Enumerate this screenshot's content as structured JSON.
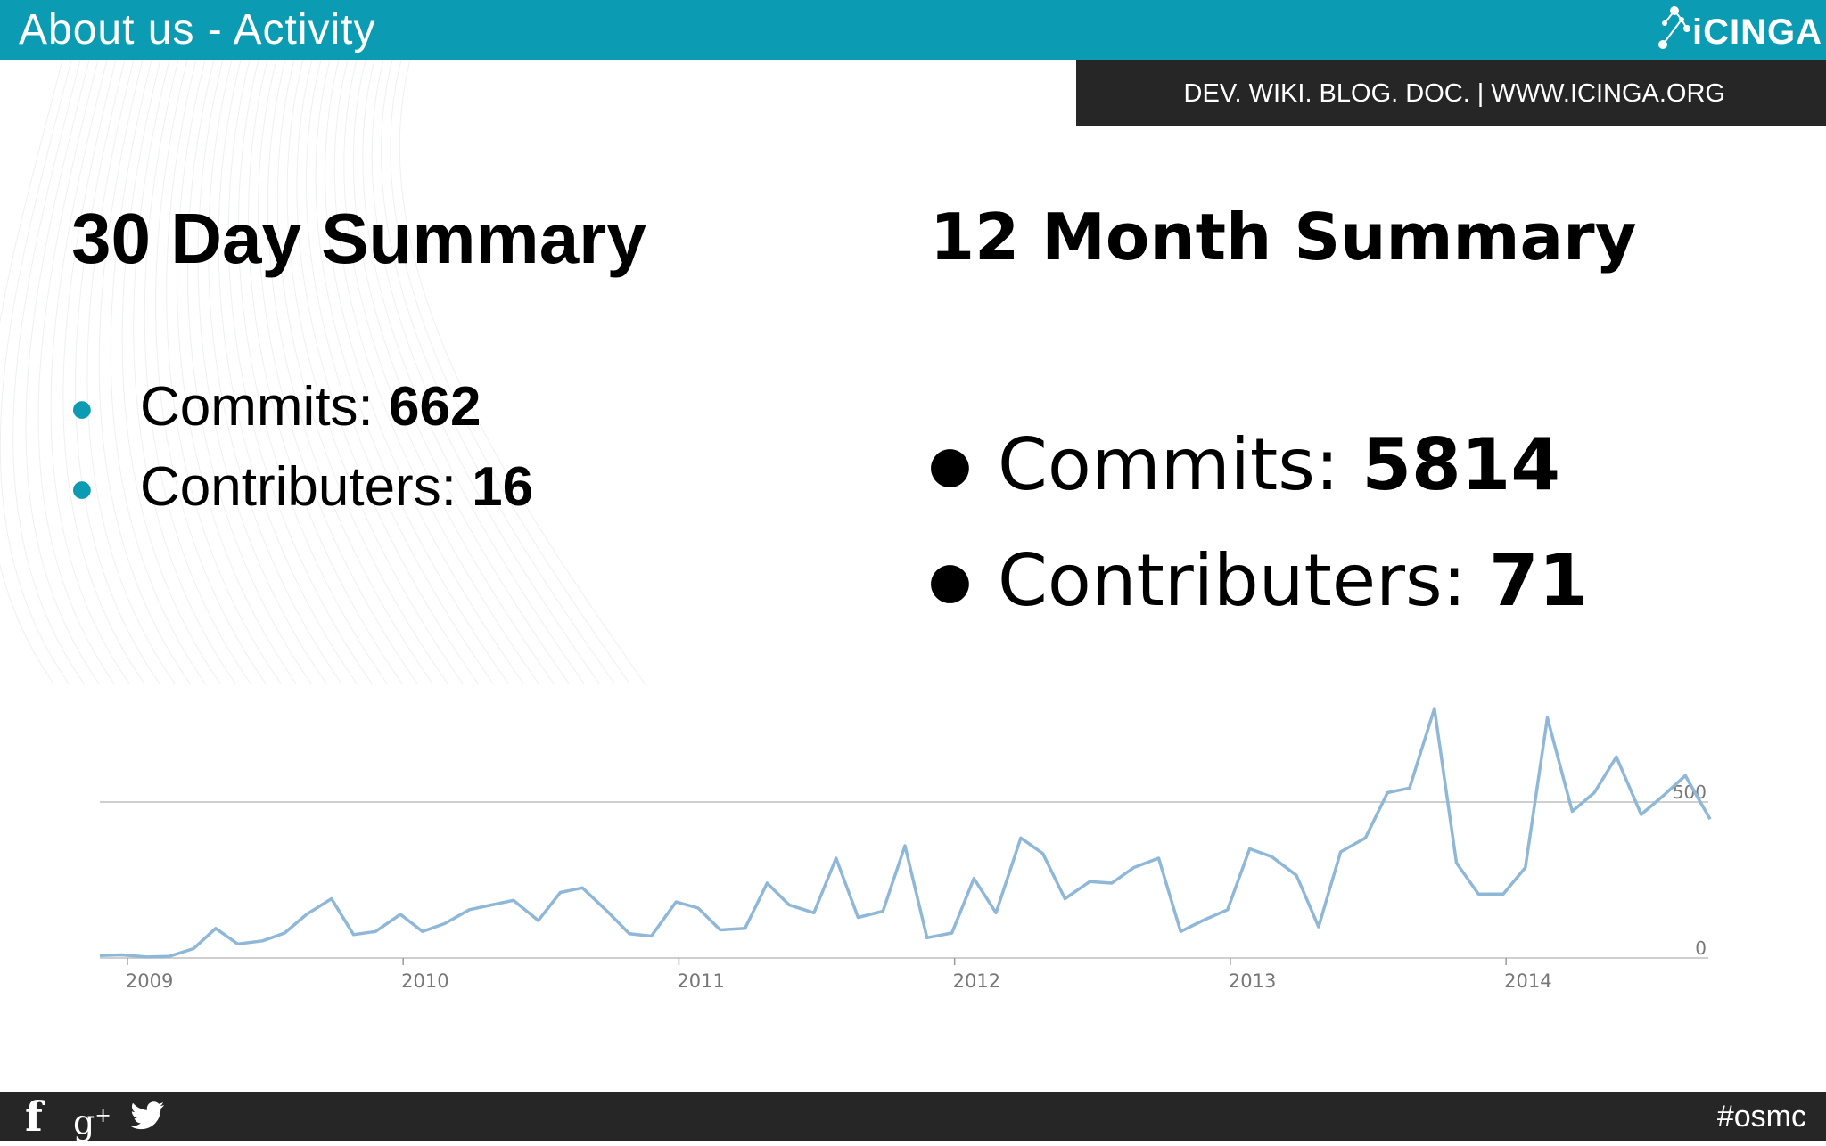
{
  "header": {
    "title": "About us - Activity",
    "logo_text": "iCINGA",
    "links": "DEV. WIKI. BLOG. DOC.  |  WWW.ICINGA.ORG"
  },
  "summary_30": {
    "heading": "30 Day Summary",
    "items": [
      {
        "label": "Commits: ",
        "value": "662"
      },
      {
        "label": "Contributers: ",
        "value": "16"
      }
    ]
  },
  "summary_12": {
    "heading": "12 Month Summary",
    "items": [
      {
        "label": "Commits: ",
        "value": "5814"
      },
      {
        "label": "Contributers: ",
        "value": "71"
      }
    ]
  },
  "footer": {
    "hashtag": "#osmc",
    "icons": [
      "facebook-icon",
      "google-plus-icon",
      "twitter-icon"
    ]
  },
  "colors": {
    "accent": "#0b9bb3",
    "dark_bar": "#262626",
    "series_line": "#8fb8d8"
  },
  "chart_data": {
    "type": "line",
    "title": "",
    "xlabel": "",
    "ylabel": "",
    "x_ticks": [
      "2009",
      "2010",
      "2011",
      "2012",
      "2013",
      "2014"
    ],
    "y_ticks": [
      0,
      500
    ],
    "ylim": [
      0,
      800
    ],
    "xlim": [
      2008.9,
      2014.74
    ],
    "grid": "horizontal",
    "y_tick_position": "right",
    "series": [
      {
        "x": [
          2008.9,
          2008.98,
          2009.07,
          2009.15,
          2009.24,
          2009.32,
          2009.4,
          2009.49,
          2009.57,
          2009.65,
          2009.74,
          2009.82,
          2009.9,
          2009.99,
          2010.07,
          2010.15,
          2010.24,
          2010.32,
          2010.4,
          2010.49,
          2010.57,
          2010.65,
          2010.74,
          2010.82,
          2010.9,
          2010.99,
          2011.07,
          2011.15,
          2011.24,
          2011.32,
          2011.4,
          2011.49,
          2011.57,
          2011.65,
          2011.74,
          2011.82,
          2011.9,
          2011.99,
          2012.07,
          2012.15,
          2012.24,
          2012.32,
          2012.4,
          2012.49,
          2012.57,
          2012.65,
          2012.74,
          2012.82,
          2012.9,
          2012.99,
          2013.07,
          2013.15,
          2013.24,
          2013.32,
          2013.4,
          2013.49,
          2013.57,
          2013.65,
          2013.74,
          2013.82,
          2013.9,
          2013.99,
          2014.07,
          2014.15,
          2014.24,
          2014.32,
          2014.4,
          2014.49,
          2014.57,
          2014.65,
          2014.74
        ],
        "values": [
          8,
          10,
          3,
          5,
          30,
          95,
          45,
          55,
          80,
          140,
          190,
          75,
          85,
          140,
          85,
          110,
          155,
          170,
          185,
          120,
          210,
          225,
          150,
          78,
          70,
          180,
          160,
          90,
          95,
          240,
          170,
          145,
          320,
          130,
          150,
          360,
          65,
          80,
          255,
          145,
          385,
          335,
          190,
          245,
          240,
          290,
          320,
          85,
          120,
          155,
          350,
          325,
          265,
          100,
          340,
          385,
          530,
          545,
          800,
          305,
          205,
          205,
          290,
          770,
          470,
          530,
          645,
          460,
          520,
          585,
          445
        ]
      }
    ]
  }
}
